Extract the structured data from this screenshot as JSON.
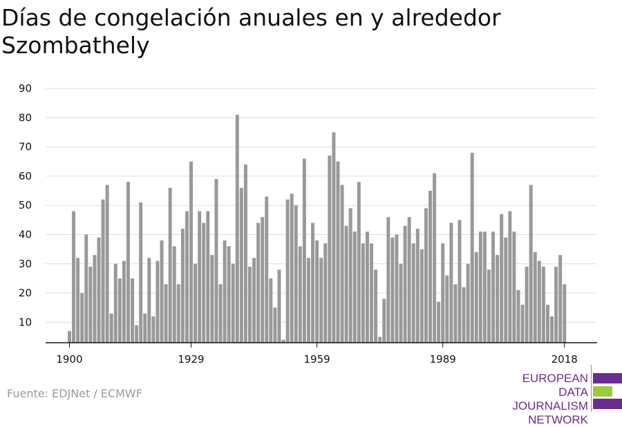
{
  "title": "Días de congelación anuales en y alrededor Szombathely",
  "source": "Fuente: EDJNet / ECMWF",
  "logo": {
    "line1": "EUROPEAN",
    "line2": "DATA JOURNALISM",
    "line3": "NETWORK",
    "colors": {
      "purple": "#6b2c91",
      "green": "#9bcb3b"
    }
  },
  "colors": {
    "bar": "#999999",
    "grid": "#dddddd",
    "axis": "#111111",
    "text": "#111111"
  },
  "chart_data": {
    "type": "bar",
    "title": "Días de congelación anuales en y alrededor Szombathely",
    "xlabel": "",
    "ylabel": "",
    "ylim": [
      3,
      90
    ],
    "yticks": [
      10,
      20,
      30,
      40,
      50,
      60,
      70,
      80,
      90
    ],
    "xticks": [
      "1900",
      "1929",
      "1959",
      "1989",
      "2018"
    ],
    "grid": true,
    "x": [
      1900,
      1901,
      1902,
      1903,
      1904,
      1905,
      1906,
      1907,
      1908,
      1909,
      1910,
      1911,
      1912,
      1913,
      1914,
      1915,
      1916,
      1917,
      1918,
      1919,
      1920,
      1921,
      1922,
      1923,
      1924,
      1925,
      1926,
      1927,
      1928,
      1929,
      1930,
      1931,
      1932,
      1933,
      1934,
      1935,
      1936,
      1937,
      1938,
      1939,
      1940,
      1941,
      1942,
      1943,
      1944,
      1945,
      1946,
      1947,
      1948,
      1949,
      1950,
      1951,
      1952,
      1953,
      1954,
      1955,
      1956,
      1957,
      1958,
      1959,
      1960,
      1961,
      1962,
      1963,
      1964,
      1965,
      1966,
      1967,
      1968,
      1969,
      1970,
      1971,
      1972,
      1973,
      1974,
      1975,
      1976,
      1977,
      1978,
      1979,
      1980,
      1981,
      1982,
      1983,
      1984,
      1985,
      1986,
      1987,
      1988,
      1989,
      1990,
      1991,
      1992,
      1993,
      1994,
      1995,
      1996,
      1997,
      1998,
      1999,
      2000,
      2001,
      2002,
      2003,
      2004,
      2005,
      2006,
      2007,
      2008,
      2009,
      2010,
      2011,
      2012,
      2013,
      2014,
      2015,
      2016,
      2017,
      2018,
      2019
    ],
    "values": [
      7,
      48,
      32,
      20,
      40,
      29,
      33,
      39,
      52,
      57,
      13,
      30,
      25,
      31,
      58,
      25,
      9,
      51,
      13,
      32,
      12,
      31,
      38,
      23,
      56,
      36,
      23,
      42,
      48,
      65,
      30,
      48,
      44,
      48,
      33,
      59,
      23,
      38,
      36,
      30,
      81,
      56,
      64,
      29,
      32,
      44,
      46,
      53,
      25,
      15,
      28,
      4,
      52,
      54,
      50,
      36,
      66,
      32,
      44,
      38,
      32,
      37,
      67,
      75,
      65,
      57,
      43,
      49,
      41,
      58,
      37,
      41,
      37,
      28,
      5,
      18,
      46,
      39,
      40,
      30,
      43,
      46,
      37,
      42,
      35,
      49,
      55,
      61,
      17,
      37,
      26,
      44,
      23,
      45,
      22,
      30,
      68,
      34,
      41,
      41,
      28,
      41,
      33,
      47,
      39,
      48,
      41,
      21,
      16,
      29,
      57,
      34,
      31,
      29,
      16,
      12,
      29,
      33,
      23,
      null
    ]
  }
}
